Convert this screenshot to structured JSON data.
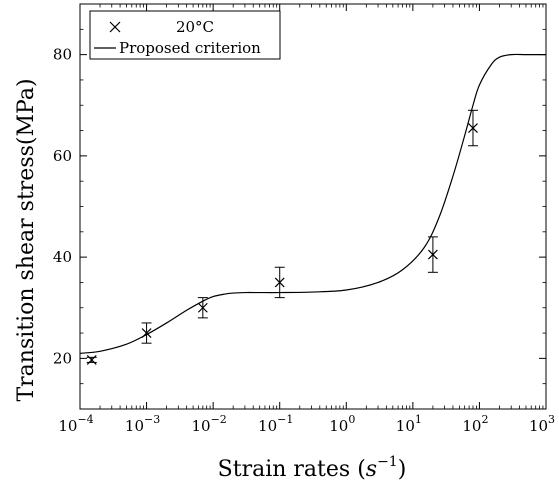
{
  "chart_data": {
    "type": "scatter",
    "xscale": "log",
    "xlim": [
      0.0001,
      1000
    ],
    "ylim": [
      10,
      90
    ],
    "x_ticks": [
      0.0001,
      0.001,
      0.01,
      0.1,
      1,
      10,
      100,
      1000
    ],
    "x_tick_labels": [
      {
        "base": "10",
        "exp": "−4"
      },
      {
        "base": "10",
        "exp": "−3"
      },
      {
        "base": "10",
        "exp": "−2"
      },
      {
        "base": "10",
        "exp": "−1"
      },
      {
        "base": "10",
        "exp": "0"
      },
      {
        "base": "10",
        "exp": "1"
      },
      {
        "base": "10",
        "exp": "2"
      },
      {
        "base": "10",
        "exp": "3"
      }
    ],
    "y_ticks": [
      20,
      40,
      60,
      80
    ],
    "y_tick_labels": [
      "20",
      "40",
      "60",
      "80"
    ],
    "xlabel": {
      "text": "Strain rates (",
      "var": "s",
      "exp": "−1",
      "close": ")"
    },
    "ylabel": "Transition shear stress(MPa)",
    "legend": {
      "position": "top-left",
      "entries": [
        {
          "marker": "x",
          "label": "20°C"
        },
        {
          "marker": "line",
          "label": "Proposed criterion"
        }
      ]
    },
    "series": [
      {
        "name": "20°C",
        "kind": "points",
        "marker": "x",
        "points": [
          {
            "x": 0.00015,
            "y": 19.7,
            "err": 0.5
          },
          {
            "x": 0.001,
            "y": 25.0,
            "err": 2.0
          },
          {
            "x": 0.007,
            "y": 30.0,
            "err": 2.0
          },
          {
            "x": 0.1,
            "y": 35.0,
            "err": 3.0
          },
          {
            "x": 20,
            "y": 40.5,
            "err": 3.5
          },
          {
            "x": 80,
            "y": 65.5,
            "err": 3.5
          }
        ]
      },
      {
        "name": "Proposed criterion",
        "kind": "line",
        "x": [
          0.0001,
          0.0002,
          0.0005,
          0.001,
          0.002,
          0.004,
          0.007,
          0.01,
          0.015,
          0.02,
          0.03,
          0.05,
          0.1,
          0.3,
          1,
          3,
          7,
          15,
          25,
          40,
          60,
          80,
          100,
          150,
          200,
          300,
          500,
          1000
        ],
        "y": [
          21.0,
          21.4,
          22.8,
          24.7,
          27.0,
          29.5,
          31.3,
          32.2,
          32.7,
          32.9,
          33.0,
          33.0,
          33.0,
          33.1,
          33.5,
          35.0,
          37.5,
          42.0,
          48.0,
          56.0,
          64.0,
          70.0,
          74.0,
          78.0,
          79.5,
          80.0,
          80.0,
          80.0
        ]
      }
    ]
  }
}
